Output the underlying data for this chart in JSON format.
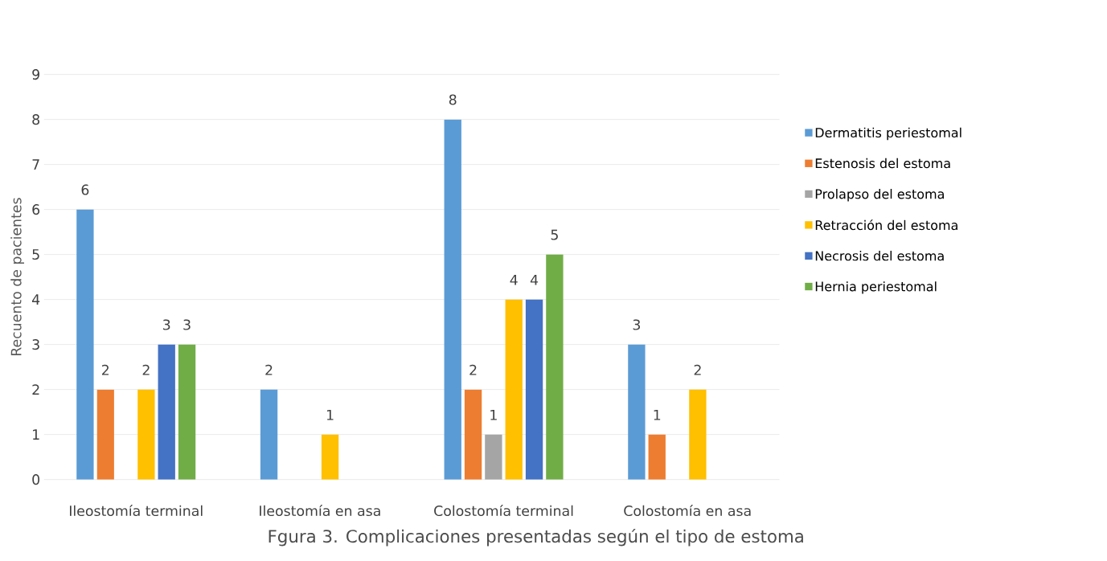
{
  "chart_data": {
    "type": "bar",
    "title": "Fgura 3.  Complicaciones presentadas según el tipo de estoma",
    "ylabel": "Recuento de pacientes",
    "categories": [
      "Ileostomía terminal",
      "Ileostomía en asa",
      "Colostomía terminal",
      "Colostomía en asa"
    ],
    "series": [
      {
        "name": "Dermatitis periestomal",
        "color": "#5b9bd5",
        "values": [
          6,
          2,
          8,
          3
        ],
        "value_labels": [
          "6",
          "2",
          "8",
          "3"
        ]
      },
      {
        "name": "Estenosis del estoma",
        "color": "#ed7d31",
        "values": [
          2,
          0,
          2,
          1
        ],
        "value_labels": [
          "2",
          null,
          "2",
          "1"
        ]
      },
      {
        "name": "Prolapso del estoma",
        "color": "#a5a5a5",
        "values": [
          0,
          0,
          1,
          0
        ],
        "value_labels": [
          null,
          null,
          "1",
          null
        ]
      },
      {
        "name": "Retracción del estoma",
        "color": "#ffc000",
        "values": [
          2,
          1,
          4,
          2
        ],
        "value_labels": [
          "2",
          "1",
          "4",
          "2"
        ]
      },
      {
        "name": "Necrosis del estoma",
        "color": "#4472c4",
        "values": [
          3,
          0,
          4,
          0
        ],
        "value_labels": [
          "3",
          null,
          "4",
          null
        ]
      },
      {
        "name": "Hernia periestomal",
        "color": "#70ad47",
        "values": [
          3,
          0,
          5,
          0
        ],
        "value_labels": [
          "3",
          null,
          "5",
          null
        ]
      }
    ],
    "ylim": [
      0,
      9
    ],
    "yticks": [
      0,
      1,
      2,
      3,
      4,
      5,
      6,
      7,
      8,
      9
    ],
    "grid": "y",
    "legend": "right"
  }
}
